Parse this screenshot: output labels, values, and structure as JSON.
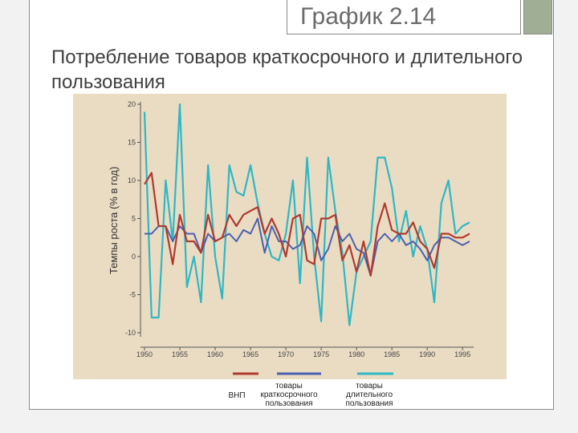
{
  "slide": {
    "title": "График 2.14",
    "subtitle": "Потребление товаров краткосрочного и длительного пользования",
    "accent_color": "#9fae94"
  },
  "chart_data": {
    "type": "line",
    "title": "",
    "xlabel": "",
    "ylabel": "Темпы роста (% в год)",
    "xlim": [
      1950,
      1996
    ],
    "ylim": [
      -10,
      20
    ],
    "x_ticks": [
      1950,
      1955,
      1960,
      1965,
      1970,
      1975,
      1980,
      1985,
      1990,
      1995
    ],
    "y_ticks": [
      -10,
      -5,
      0,
      5,
      10,
      15,
      20
    ],
    "x": [
      1950,
      1951,
      1952,
      1953,
      1954,
      1955,
      1956,
      1957,
      1958,
      1959,
      1960,
      1961,
      1962,
      1963,
      1964,
      1965,
      1966,
      1967,
      1968,
      1969,
      1970,
      1971,
      1972,
      1973,
      1974,
      1975,
      1976,
      1977,
      1978,
      1979,
      1980,
      1981,
      1982,
      1983,
      1984,
      1985,
      1986,
      1987,
      1988,
      1989,
      1990,
      1991,
      1992,
      1993,
      1994,
      1995,
      1996
    ],
    "series": [
      {
        "name": "ВНП",
        "color": "#b03a2e",
        "values": [
          9.5,
          11,
          4,
          4,
          -1,
          5.5,
          2,
          2,
          0.5,
          5.5,
          2,
          2.5,
          5.5,
          4,
          5.5,
          6,
          6.5,
          3,
          5,
          3,
          0,
          5,
          5.5,
          -0.5,
          -1,
          5,
          5,
          5.5,
          -0.5,
          1.5,
          -2,
          2,
          -2.5,
          4,
          7,
          3.5,
          3,
          3,
          4.5,
          2,
          1,
          -1.5,
          3,
          3,
          2.5,
          2.5,
          3
        ]
      },
      {
        "name": "товары краткосрочного пользования",
        "color": "#4a5fb0",
        "values": [
          3,
          3,
          4,
          4,
          2,
          4,
          3,
          3,
          0.5,
          3,
          2,
          2.5,
          3,
          2,
          3.5,
          3,
          5,
          0.5,
          4,
          2,
          2,
          1,
          1.5,
          4,
          3,
          -0.5,
          1,
          4,
          2,
          3,
          1,
          0.5,
          -2.5,
          2,
          3,
          2,
          3,
          1.5,
          2,
          1,
          -0.5,
          1.5,
          2.5,
          2.5,
          2,
          1.5,
          2
        ]
      },
      {
        "name": "товары длительного пользования",
        "color": "#2fb7c4",
        "values": [
          19,
          -8,
          -8,
          10,
          2,
          20,
          -4,
          0,
          -6,
          12,
          0,
          -5.5,
          12,
          8.5,
          8,
          12,
          7,
          3,
          0,
          -0.5,
          3,
          10,
          -3.5,
          13,
          0,
          -8.5,
          13,
          6,
          0.5,
          -9,
          -2,
          0,
          2,
          13,
          13,
          9,
          2,
          6,
          0,
          4,
          1,
          -6,
          7,
          10,
          3,
          4,
          4.5
        ]
      }
    ],
    "grid": false,
    "legend_position": "bottom",
    "legend": [
      "ВНП",
      "товары краткосрочного пользования",
      "товары длительного пользования"
    ],
    "background": "#e9dcc3"
  },
  "legend_labels": {
    "gnp": "ВНП",
    "short": "товары\nкраткосрочного\nпользования",
    "durable": "товары\nдлительного\nпользования"
  }
}
